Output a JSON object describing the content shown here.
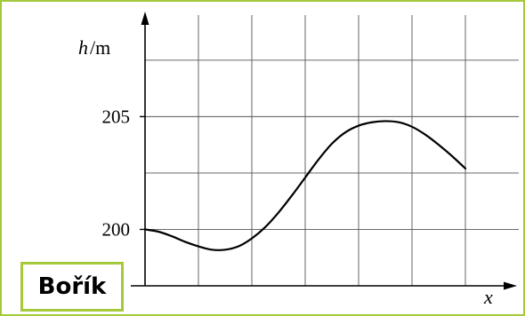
{
  "chart_data": {
    "type": "line",
    "title": "",
    "xlabel": "x",
    "ylabel": {
      "var": "h",
      "unit": "/m"
    },
    "ylim": [
      197.5,
      209.5
    ],
    "xlim": [
      0,
      7
    ],
    "yticks": [
      {
        "value": 200,
        "label": "200"
      },
      {
        "value": 205,
        "label": "205"
      }
    ],
    "grid": true,
    "series": [
      {
        "x": [
          0,
          0.25,
          0.5,
          0.75,
          1.0,
          1.25,
          1.5,
          1.75,
          2.0,
          2.25,
          2.5,
          2.75,
          3.0,
          3.25,
          3.5,
          3.75,
          4.0,
          4.25,
          4.5,
          4.75,
          5.0,
          5.25,
          5.5,
          5.75,
          6.0
        ],
        "y": [
          200.0,
          199.9,
          199.7,
          199.45,
          199.25,
          199.1,
          199.1,
          199.25,
          199.6,
          200.1,
          200.75,
          201.5,
          202.3,
          203.1,
          203.8,
          204.3,
          204.6,
          204.75,
          204.8,
          204.75,
          204.55,
          204.2,
          203.75,
          203.25,
          202.7
        ]
      }
    ]
  },
  "badge": {
    "text": "Bořík"
  },
  "colors": {
    "frame": "#a4c93a",
    "grid": "#555555",
    "axis": "#000000",
    "curve": "#000000"
  }
}
